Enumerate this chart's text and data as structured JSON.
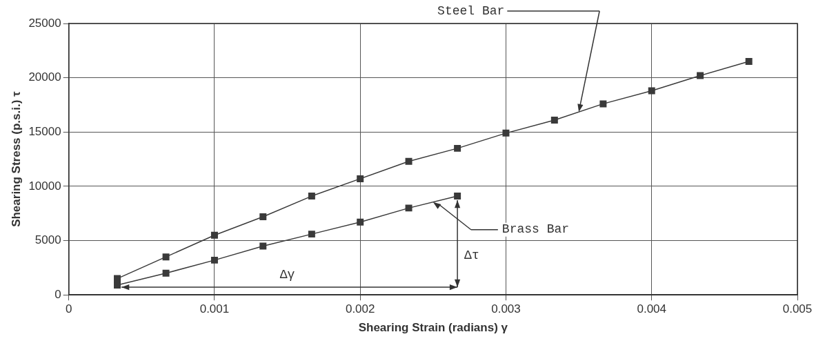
{
  "chart_data": {
    "type": "line",
    "xlabel": "Shearing Strain (radians) γ",
    "ylabel": "Shearing Stress (p.s.i.) τ",
    "x": [
      0.000333,
      0.000667,
      0.001,
      0.001333,
      0.001667,
      0.002,
      0.002333,
      0.002667,
      0.003,
      0.003333,
      0.003667,
      0.004,
      0.004333,
      0.004667
    ],
    "series": [
      {
        "color": "#3a3a3a",
        "values": [
          1500,
          3500,
          5500,
          7200,
          9100,
          10700,
          12300,
          13500,
          14900,
          16100,
          17600,
          18800,
          20200,
          21500
        ]
      },
      {
        "color": "#3a3a3a",
        "values": [
          900,
          2000,
          3200,
          4500,
          5600,
          6700,
          8000,
          9100,
          null,
          null,
          null,
          null,
          null,
          null
        ]
      }
    ],
    "xlim": [
      0,
      0.005
    ],
    "xticks": [
      0,
      0.001,
      0.002,
      0.003,
      0.004,
      0.005
    ],
    "ylim": [
      0,
      25000
    ],
    "yticks": [
      0,
      5000,
      10000,
      15000,
      20000,
      25000
    ],
    "grid": true,
    "legend": false,
    "marker": "square",
    "line_style": "solid",
    "annotations": [
      "Steel Bar",
      "Brass Bar",
      "Δγ",
      "Δτ"
    ]
  }
}
